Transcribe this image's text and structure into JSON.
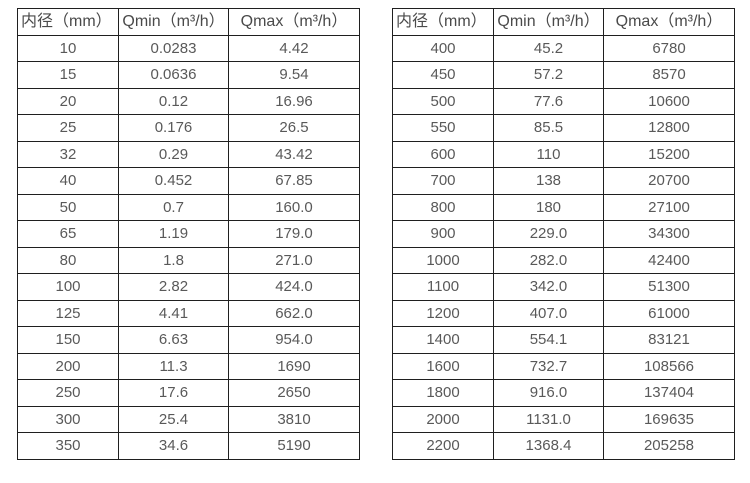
{
  "colors": {
    "background": "#ffffff",
    "border": "#1f1f1f",
    "text": "#595959",
    "header_text": "#4a4a4a"
  },
  "tables": [
    {
      "name": "flow-spec-table-small-diameters",
      "headers": [
        "内径（mm）",
        "Qmin（m³/h）",
        "Qmax（m³/h）"
      ],
      "rows": [
        [
          "10",
          "0.0283",
          "4.42"
        ],
        [
          "15",
          "0.0636",
          "9.54"
        ],
        [
          "20",
          "0.12",
          "16.96"
        ],
        [
          "25",
          "0.176",
          "26.5"
        ],
        [
          "32",
          "0.29",
          "43.42"
        ],
        [
          "40",
          "0.452",
          "67.85"
        ],
        [
          "50",
          "0.7",
          "160.0"
        ],
        [
          "65",
          "1.19",
          "179.0"
        ],
        [
          "80",
          "1.8",
          "271.0"
        ],
        [
          "100",
          "2.82",
          "424.0"
        ],
        [
          "125",
          "4.41",
          "662.0"
        ],
        [
          "150",
          "6.63",
          "954.0"
        ],
        [
          "200",
          "11.3",
          "1690"
        ],
        [
          "250",
          "17.6",
          "2650"
        ],
        [
          "300",
          "25.4",
          "3810"
        ],
        [
          "350",
          "34.6",
          "5190"
        ]
      ]
    },
    {
      "name": "flow-spec-table-large-diameters",
      "headers": [
        "内径（mm）",
        "Qmin（m³/h）",
        "Qmax（m³/h）"
      ],
      "rows": [
        [
          "400",
          "45.2",
          "6780"
        ],
        [
          "450",
          "57.2",
          "8570"
        ],
        [
          "500",
          "77.6",
          "10600"
        ],
        [
          "550",
          "85.5",
          "12800"
        ],
        [
          "600",
          "110",
          "15200"
        ],
        [
          "700",
          "138",
          "20700"
        ],
        [
          "800",
          "180",
          "27100"
        ],
        [
          "900",
          "229.0",
          "34300"
        ],
        [
          "1000",
          "282.0",
          "42400"
        ],
        [
          "1100",
          "342.0",
          "51300"
        ],
        [
          "1200",
          "407.0",
          "61000"
        ],
        [
          "1400",
          "554.1",
          "83121"
        ],
        [
          "1600",
          "732.7",
          "108566"
        ],
        [
          "1800",
          "916.0",
          "137404"
        ],
        [
          "2000",
          "1131.0",
          "169635"
        ],
        [
          "2200",
          "1368.4",
          "205258"
        ]
      ]
    }
  ]
}
